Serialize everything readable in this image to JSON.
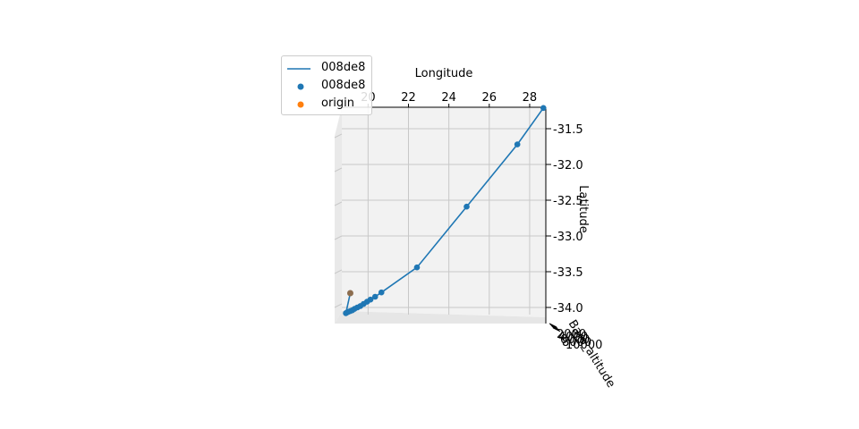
{
  "chart_data": {
    "type": "scatter",
    "title": "",
    "xlabel": "Longitude",
    "ylabel": "Latitude",
    "zlabel": "Baro_altitude",
    "xlim": [
      18.7,
      28.8
    ],
    "ylim": [
      -31.2,
      -34.1
    ],
    "x_ticks": [
      "20",
      "22",
      "24",
      "26",
      "28"
    ],
    "x_tick_values": [
      20,
      22,
      24,
      26,
      28
    ],
    "y_ticks": [
      "-31.5",
      "-32.0",
      "-32.5",
      "-33.0",
      "-33.5",
      "-34.0"
    ],
    "y_tick_values": [
      -31.5,
      -32.0,
      -32.5,
      -33.0,
      -33.5,
      -34.0
    ],
    "z_ticks": [
      "2000",
      "4000",
      "6000",
      "8000",
      "10000"
    ],
    "grid": true,
    "legend": {
      "position": "upper-left",
      "entries": [
        {
          "label": "008de8",
          "kind": "line",
          "color": "#1f77b4"
        },
        {
          "label": "008de8",
          "kind": "marker",
          "color": "#1f77b4"
        },
        {
          "label": "origin",
          "kind": "marker",
          "color": "#ff7f0e"
        }
      ]
    },
    "series": [
      {
        "name": "008de8",
        "color": "#1f77b4",
        "points": [
          {
            "lon": 28.68,
            "lat": -31.21
          },
          {
            "lon": 27.39,
            "lat": -31.72
          },
          {
            "lon": 24.88,
            "lat": -32.59
          },
          {
            "lon": 22.42,
            "lat": -33.44
          },
          {
            "lon": 20.66,
            "lat": -33.79
          },
          {
            "lon": 20.35,
            "lat": -33.85
          },
          {
            "lon": 20.12,
            "lat": -33.89
          },
          {
            "lon": 19.95,
            "lat": -33.92
          },
          {
            "lon": 19.78,
            "lat": -33.95
          },
          {
            "lon": 19.62,
            "lat": -33.98
          },
          {
            "lon": 19.47,
            "lat": -34.0
          },
          {
            "lon": 19.33,
            "lat": -34.02
          },
          {
            "lon": 19.22,
            "lat": -34.04
          },
          {
            "lon": 19.12,
            "lat": -34.05
          },
          {
            "lon": 19.03,
            "lat": -34.06
          },
          {
            "lon": 18.96,
            "lat": -34.07
          },
          {
            "lon": 18.9,
            "lat": -34.08
          }
        ]
      }
    ],
    "origin": {
      "name": "origin",
      "color": "#ff7f0e",
      "lon": 19.12,
      "lat": -33.8
    }
  }
}
